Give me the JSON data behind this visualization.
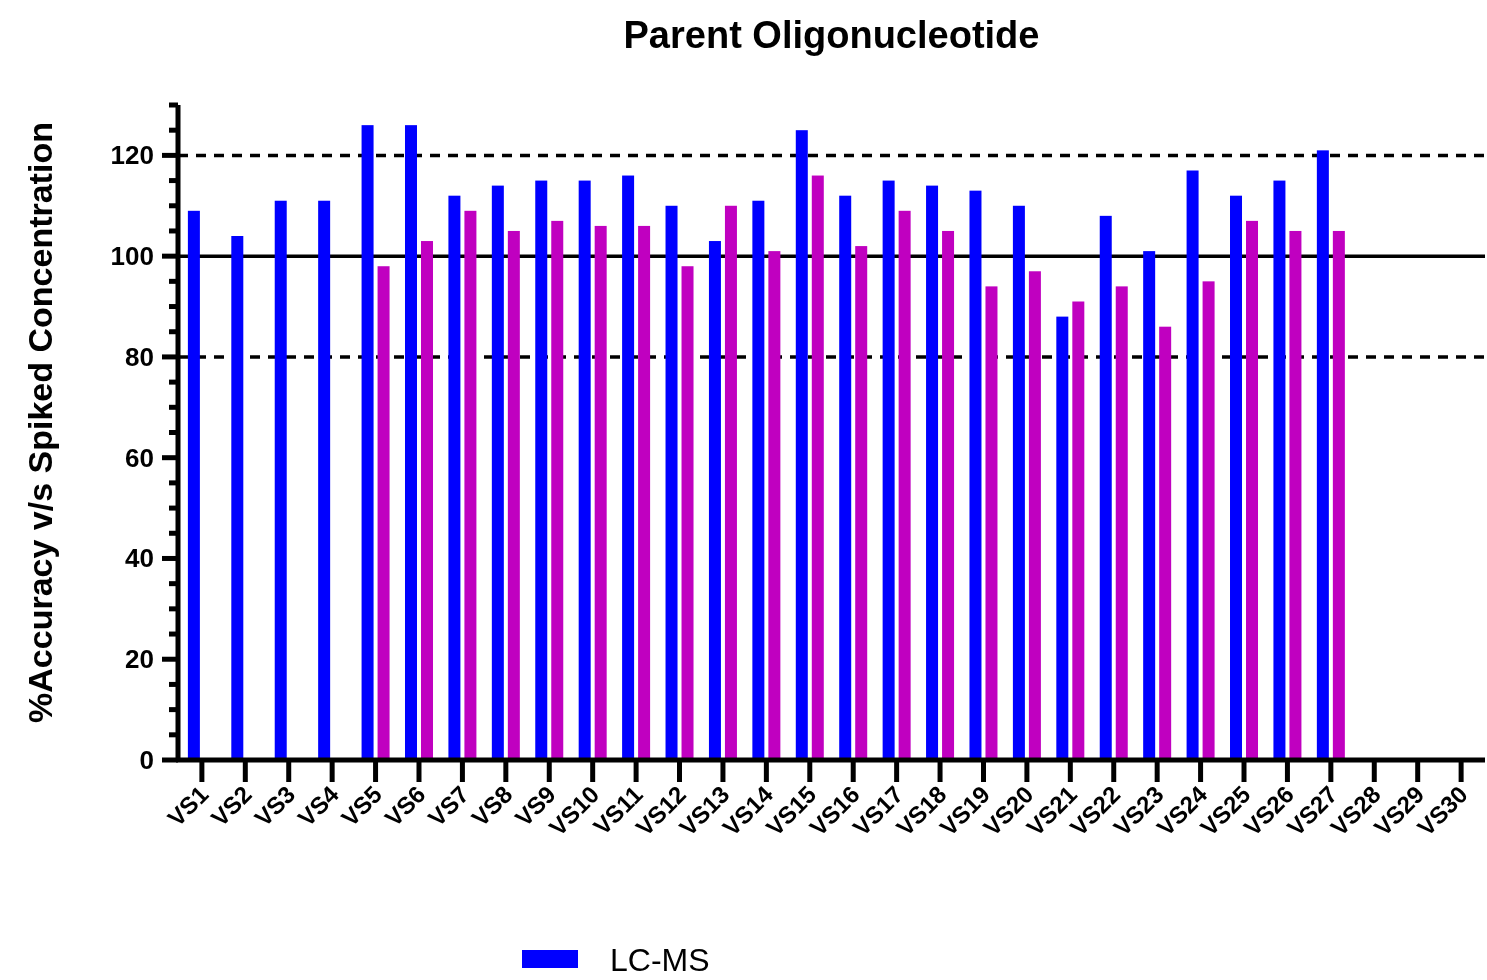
{
  "chart_data": {
    "type": "bar",
    "title": "Parent Oligonucleotide",
    "ylabel": "%Accuracy v/s Spiked Concentration",
    "categories": [
      "VS1",
      "VS2",
      "VS3",
      "VS4",
      "VS5",
      "VS6",
      "VS7",
      "VS8",
      "VS9",
      "VS10",
      "VS11",
      "VS12",
      "VS13",
      "VS14",
      "VS15",
      "VS16",
      "VS17",
      "VS18",
      "VS19",
      "VS20",
      "VS21",
      "VS22",
      "VS23",
      "VS24",
      "VS25",
      "VS26",
      "VS27",
      "VS28",
      "VS29",
      "VS30"
    ],
    "series": [
      {
        "name": "LC-MS",
        "color": "#0000ff",
        "values": [
          109,
          104,
          111,
          111,
          126,
          126,
          112,
          114,
          115,
          115,
          116,
          110,
          103,
          111,
          125,
          112,
          115,
          114,
          113,
          110,
          88,
          108,
          101,
          117,
          112,
          115,
          121,
          null,
          null,
          null
        ]
      },
      {
        "color": "#c000c0",
        "values": [
          null,
          null,
          null,
          null,
          98,
          103,
          109,
          105,
          107,
          106,
          106,
          98,
          110,
          101,
          116,
          102,
          109,
          105,
          94,
          97,
          91,
          94,
          86,
          95,
          107,
          105,
          105,
          null,
          null,
          null
        ]
      }
    ],
    "ylim": [
      0,
      130
    ],
    "yticks": [
      0,
      {
        "value": 5,
        "label": null
      },
      {
        "value": 10,
        "label": null
      },
      {
        "value": 15,
        "label": null
      },
      20,
      {
        "value": 25,
        "label": null
      },
      {
        "value": 30,
        "label": null
      },
      {
        "value": 35,
        "label": null
      },
      40,
      {
        "value": 45,
        "label": null
      },
      {
        "value": 50,
        "label": null
      },
      {
        "value": 55,
        "label": null
      },
      60,
      {
        "value": 65,
        "label": null
      },
      {
        "value": 70,
        "label": null
      },
      {
        "value": 75,
        "label": null
      },
      80,
      {
        "value": 85,
        "label": null
      },
      {
        "value": 90,
        "label": null
      },
      {
        "value": 95,
        "label": null
      },
      100,
      {
        "value": 105,
        "label": null
      },
      {
        "value": 110,
        "label": null
      },
      {
        "value": 115,
        "label": null
      },
      120,
      {
        "value": 125,
        "label": null
      },
      {
        "value": 130,
        "label": null
      }
    ],
    "ref_lines": [
      {
        "axis": "y",
        "value": 80,
        "line_style": "dashed"
      },
      {
        "axis": "y",
        "value": 100,
        "line_style": "solid"
      },
      {
        "axis": "y",
        "value": 120,
        "line_style": "dashed"
      }
    ],
    "legend": "bottom",
    "grid": false
  }
}
